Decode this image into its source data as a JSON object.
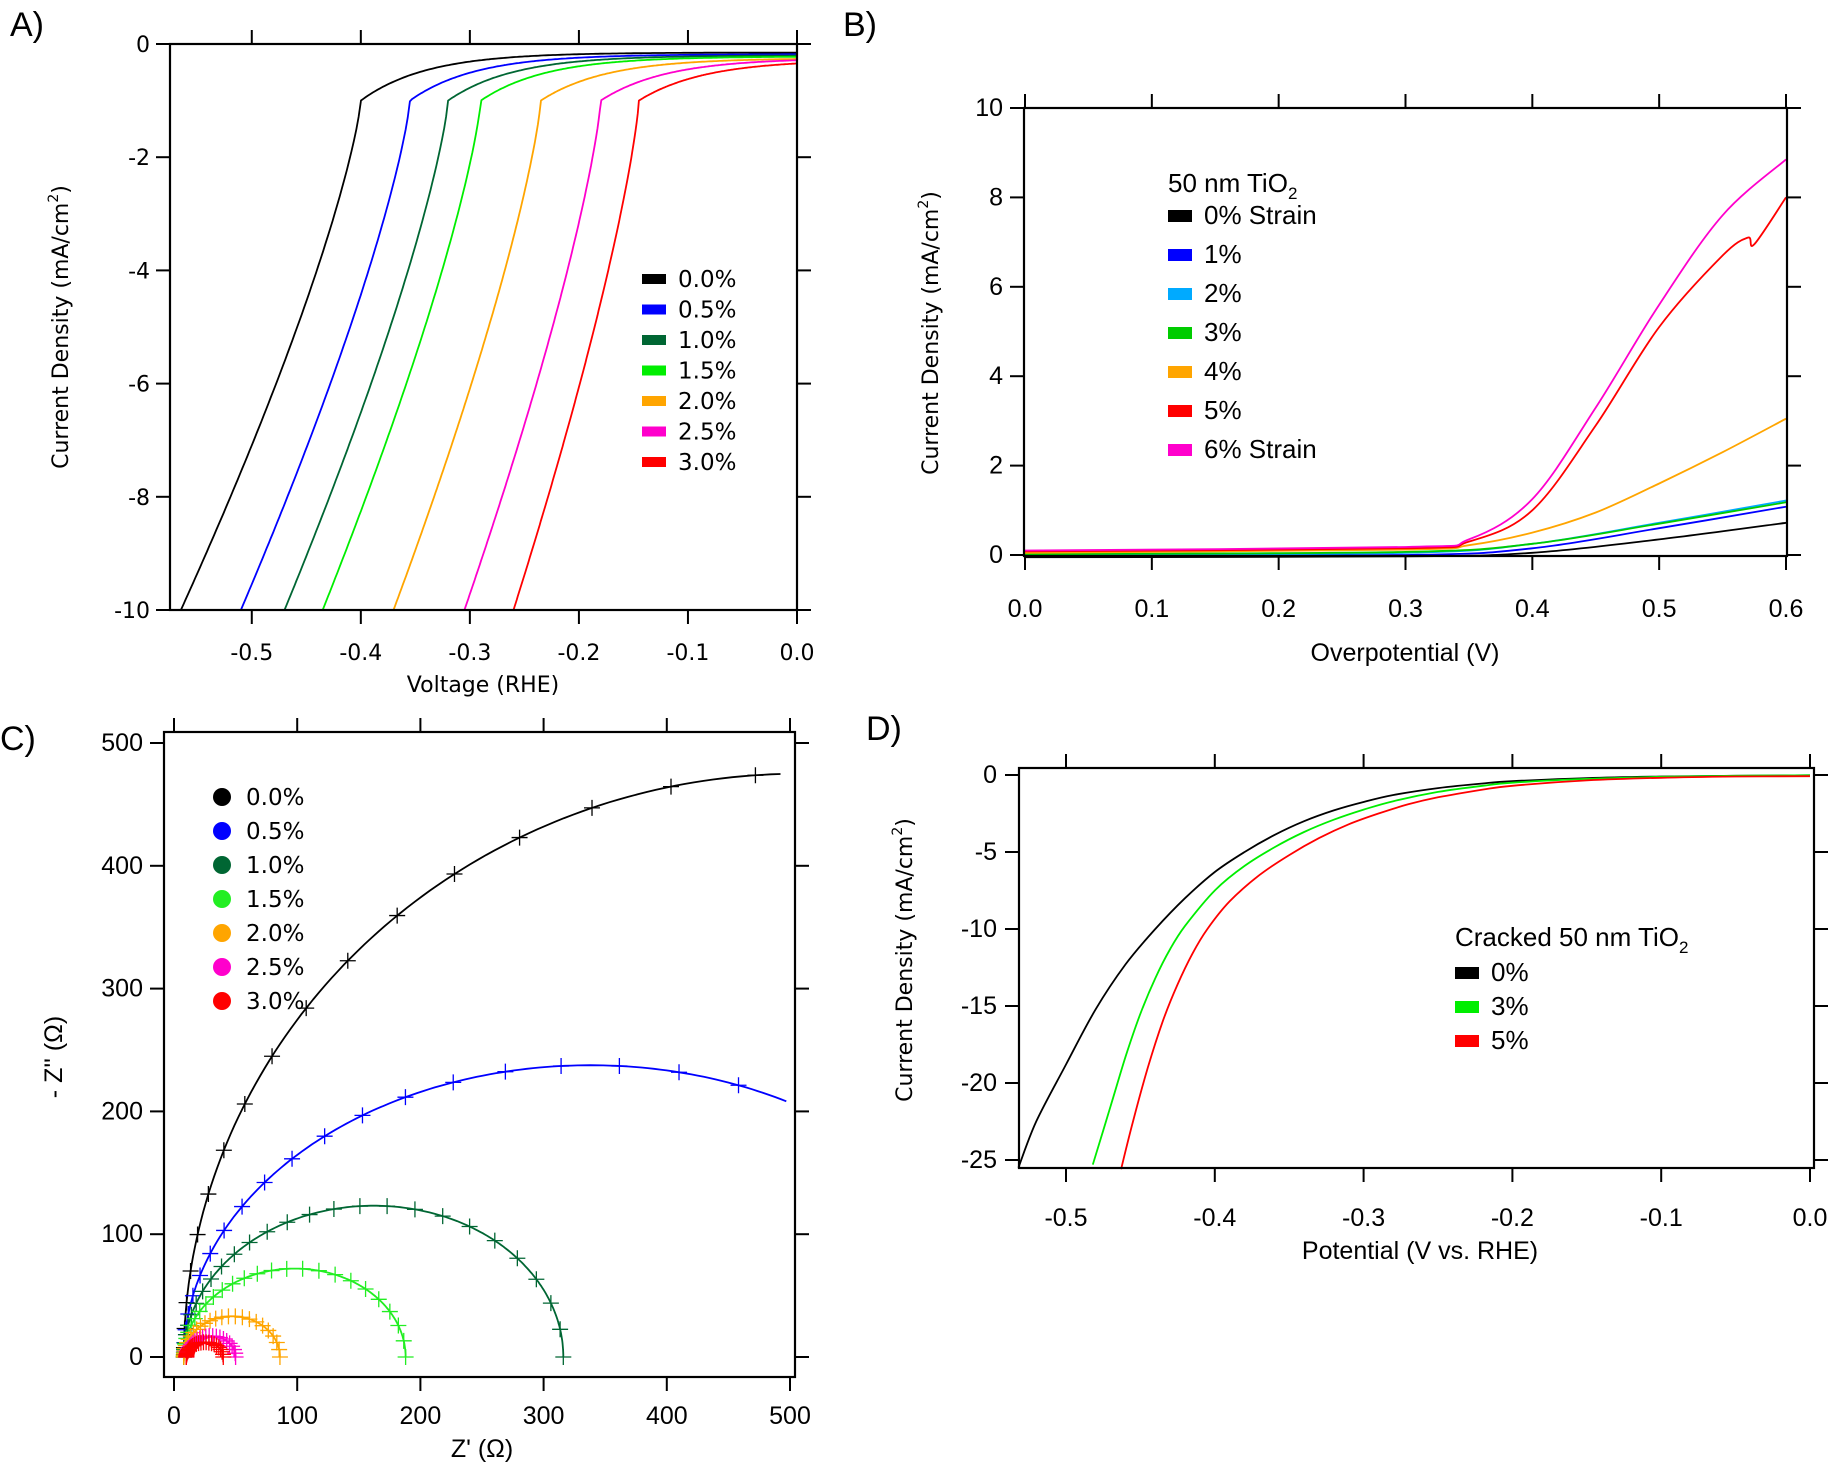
{
  "figure": {
    "panels": [
      "A)",
      "B)",
      "C)",
      "D)"
    ]
  },
  "chart_data": [
    {
      "id": "A",
      "type": "line",
      "panel_label": "A)",
      "title": "",
      "xlabel": "Voltage (RHE)",
      "ylabel": "Current Density (mA/cm",
      "ylabel_sup": "2",
      "ylabel_close": ")",
      "xlim": [
        -0.575,
        0.0
      ],
      "ylim": [
        -10,
        0
      ],
      "xticks": [
        -0.5,
        -0.4,
        -0.3,
        -0.2,
        -0.1,
        0.0
      ],
      "xtick_labels": [
        "-0.5",
        "-0.4",
        "-0.3",
        "-0.2",
        "-0.1",
        "0.0"
      ],
      "yticks": [
        0,
        -2,
        -4,
        -6,
        -8,
        -10
      ],
      "ytick_labels": [
        "0",
        "-2",
        "-4",
        "-6",
        "-8",
        "-10"
      ],
      "grid": false,
      "legend_position": "center-right",
      "series": [
        {
          "name": "0.0%",
          "color": "#000000",
          "onset": -0.565,
          "knee": -0.4,
          "j_at_0": -0.15
        },
        {
          "name": "0.5%",
          "color": "#0000ff",
          "onset": -0.51,
          "knee": -0.355,
          "j_at_0": -0.18
        },
        {
          "name": "1.0%",
          "color": "#006633",
          "onset": -0.47,
          "knee": -0.32,
          "j_at_0": -0.2
        },
        {
          "name": "1.5%",
          "color": "#00ee00",
          "onset": -0.435,
          "knee": -0.29,
          "j_at_0": -0.22
        },
        {
          "name": "2.0%",
          "color": "#ffa500",
          "onset": -0.37,
          "knee": -0.235,
          "j_at_0": -0.25
        },
        {
          "name": "2.5%",
          "color": "#ff00cc",
          "onset": -0.305,
          "knee": -0.18,
          "j_at_0": -0.25
        },
        {
          "name": "3.0%",
          "color": "#ff0000",
          "onset": -0.26,
          "knee": -0.145,
          "j_at_0": -0.28
        }
      ]
    },
    {
      "id": "B",
      "type": "line",
      "panel_label": "B)",
      "title": "",
      "xlabel": "Overpotential (V)",
      "ylabel": "Current Density (mA/cm",
      "ylabel_sup": "2",
      "ylabel_close": ")",
      "xlim": [
        0.0,
        0.6
      ],
      "ylim": [
        0,
        10
      ],
      "xticks": [
        0.0,
        0.1,
        0.2,
        0.3,
        0.4,
        0.5,
        0.6
      ],
      "xtick_labels": [
        "0.0",
        "0.1",
        "0.2",
        "0.3",
        "0.4",
        "0.5",
        "0.6"
      ],
      "yticks": [
        0,
        2,
        4,
        6,
        8,
        10
      ],
      "ytick_labels": [
        "0",
        "2",
        "4",
        "6",
        "8",
        "10"
      ],
      "grid": false,
      "legend_position": "top-left",
      "legend_title": "50 nm TiO",
      "legend_title_sub": "2",
      "series": [
        {
          "name": "0% Strain",
          "color": "#000000",
          "x": [
            0.0,
            0.3,
            0.4,
            0.5,
            0.6
          ],
          "y": [
            -0.05,
            -0.03,
            0.05,
            0.35,
            0.72
          ]
        },
        {
          "name": "1%",
          "color": "#0000ff",
          "x": [
            0.0,
            0.3,
            0.4,
            0.5,
            0.6
          ],
          "y": [
            -0.02,
            0.0,
            0.15,
            0.6,
            1.08
          ]
        },
        {
          "name": "2%",
          "color": "#00aaff",
          "x": [
            0.0,
            0.3,
            0.4,
            0.5,
            0.6
          ],
          "y": [
            0.0,
            0.05,
            0.25,
            0.72,
            1.22
          ]
        },
        {
          "name": "3%",
          "color": "#00cc00",
          "x": [
            0.0,
            0.3,
            0.4,
            0.5,
            0.6
          ],
          "y": [
            0.02,
            0.07,
            0.25,
            0.7,
            1.18
          ]
        },
        {
          "name": "4%",
          "color": "#ffa500",
          "x": [
            0.0,
            0.3,
            0.35,
            0.4,
            0.45,
            0.5,
            0.55,
            0.6
          ],
          "y": [
            0.05,
            0.12,
            0.22,
            0.5,
            0.95,
            1.6,
            2.3,
            3.05
          ]
        },
        {
          "name": "5%",
          "color": "#ff0000",
          "x": [
            0.0,
            0.3,
            0.35,
            0.4,
            0.45,
            0.5,
            0.55,
            0.57,
            0.575,
            0.6
          ],
          "y": [
            0.08,
            0.15,
            0.3,
            1.0,
            2.9,
            5.1,
            6.7,
            7.1,
            6.95,
            8.0
          ]
        },
        {
          "name": "6% Strain",
          "color": "#ff00cc",
          "x": [
            0.0,
            0.3,
            0.35,
            0.4,
            0.45,
            0.5,
            0.55,
            0.6
          ],
          "y": [
            0.1,
            0.18,
            0.35,
            1.25,
            3.3,
            5.6,
            7.6,
            8.85
          ]
        }
      ]
    },
    {
      "id": "C",
      "type": "scatter",
      "panel_label": "C)",
      "title": "",
      "xlabel": "Z' (Ω)",
      "ylabel": "- Z'' (Ω)",
      "xlim": [
        -25,
        510
      ],
      "ylim": [
        -10,
        510
      ],
      "xticks": [
        0,
        100,
        200,
        300,
        400,
        500
      ],
      "xtick_labels": [
        "0",
        "100",
        "200",
        "300",
        "400",
        "500"
      ],
      "yticks": [
        0,
        100,
        200,
        300,
        400,
        500
      ],
      "ytick_labels": [
        "0",
        "100",
        "200",
        "300",
        "400",
        "500"
      ],
      "grid": false,
      "legend_position": "top-left",
      "series": [
        {
          "name": "0.0%",
          "color": "#000000",
          "r0": 8,
          "diameter": 1000,
          "depression": 0.95,
          "x_end": 500
        },
        {
          "name": "0.5%",
          "color": "#0000ff",
          "r0": 8,
          "diameter": 660,
          "depression": 0.72,
          "x_end": 500
        },
        {
          "name": "1.0%",
          "color": "#006633",
          "r0": 8,
          "diameter": 308,
          "depression": 0.8,
          "x_end": 316
        },
        {
          "name": "1.5%",
          "color": "#22ee22",
          "r0": 8,
          "diameter": 180,
          "depression": 0.8,
          "x_end": 188
        },
        {
          "name": "2.0%",
          "color": "#ffa500",
          "r0": 8,
          "diameter": 78,
          "depression": 0.85,
          "x_end": 86
        },
        {
          "name": "2.5%",
          "color": "#ff00cc",
          "r0": 10,
          "diameter": 40,
          "depression": 0.85,
          "x_end": 50
        },
        {
          "name": "3.0%",
          "color": "#ff0000",
          "r0": 10,
          "diameter": 30,
          "depression": 0.8,
          "x_end": 40
        }
      ]
    },
    {
      "id": "D",
      "type": "line",
      "panel_label": "D)",
      "title": "",
      "xlabel": "Potential (V vs. RHE)",
      "ylabel": "Current Density (mA/cm",
      "ylabel_sup": "2",
      "ylabel_close": ")",
      "xlim": [
        -0.535,
        0.0
      ],
      "ylim": [
        -26,
        0.6
      ],
      "xticks": [
        -0.5,
        -0.4,
        -0.3,
        -0.2,
        -0.1,
        0.0
      ],
      "xtick_labels": [
        "-0.5",
        "-0.4",
        "-0.3",
        "-0.2",
        "-0.1",
        "0.0"
      ],
      "yticks": [
        0,
        -5,
        -10,
        -15,
        -20,
        -25
      ],
      "ytick_labels": [
        "0",
        "-5",
        "-10",
        "-15",
        "-20",
        "-25"
      ],
      "grid": false,
      "legend_position": "center-right",
      "legend_title": "Cracked 50 nm TiO",
      "legend_title_sub": "2",
      "series": [
        {
          "name": "0%",
          "color": "#000000",
          "x": [
            -0.532,
            -0.52,
            -0.5,
            -0.48,
            -0.46,
            -0.44,
            -0.42,
            -0.4,
            -0.38,
            -0.36,
            -0.34,
            -0.32,
            -0.3,
            -0.28,
            -0.25,
            -0.22,
            -0.2,
            -0.15,
            -0.1,
            -0.05,
            0.0
          ],
          "y": [
            -25.5,
            -22.5,
            -18.8,
            -15.2,
            -12.3,
            -10.0,
            -8.0,
            -6.3,
            -5.0,
            -3.9,
            -3.0,
            -2.3,
            -1.75,
            -1.3,
            -0.85,
            -0.55,
            -0.4,
            -0.2,
            -0.1,
            -0.05,
            -0.02
          ]
        },
        {
          "name": "3%",
          "color": "#00ee00",
          "x": [
            -0.482,
            -0.47,
            -0.46,
            -0.45,
            -0.44,
            -0.43,
            -0.42,
            -0.4,
            -0.38,
            -0.36,
            -0.34,
            -0.32,
            -0.3,
            -0.28,
            -0.25,
            -0.22,
            -0.2,
            -0.15,
            -0.1,
            -0.05,
            0.0
          ],
          "y": [
            -25.3,
            -21.5,
            -18.3,
            -15.5,
            -13.2,
            -11.3,
            -9.8,
            -7.5,
            -5.9,
            -4.7,
            -3.7,
            -2.9,
            -2.25,
            -1.7,
            -1.1,
            -0.7,
            -0.5,
            -0.25,
            -0.12,
            -0.05,
            -0.02
          ]
        },
        {
          "name": "5%",
          "color": "#ff0000",
          "x": [
            -0.463,
            -0.455,
            -0.445,
            -0.435,
            -0.425,
            -0.415,
            -0.405,
            -0.39,
            -0.37,
            -0.35,
            -0.33,
            -0.31,
            -0.29,
            -0.27,
            -0.25,
            -0.22,
            -0.2,
            -0.15,
            -0.1,
            -0.05,
            0.0
          ],
          "y": [
            -25.6,
            -22.5,
            -19.0,
            -16.0,
            -13.6,
            -11.6,
            -10.0,
            -8.2,
            -6.5,
            -5.2,
            -4.1,
            -3.2,
            -2.5,
            -1.9,
            -1.45,
            -0.95,
            -0.7,
            -0.35,
            -0.18,
            -0.1,
            -0.08
          ]
        }
      ]
    }
  ]
}
